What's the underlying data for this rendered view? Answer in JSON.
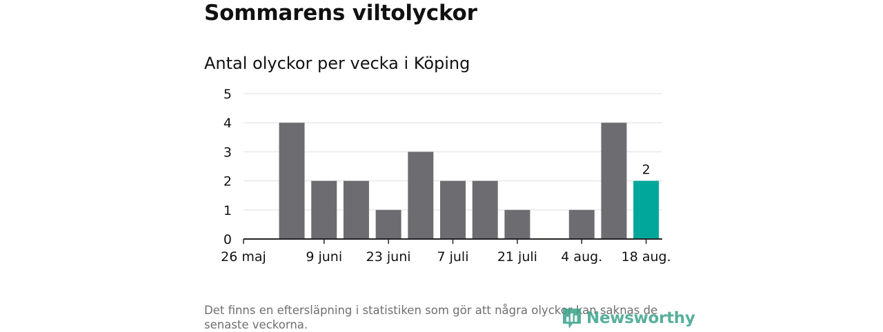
{
  "title": "Sommarens viltolyckor",
  "subtitle": "Antal olyckor per vecka i Köping",
  "footnote": "Det finns en eftersläpning i statistiken som gör att några olyckor kan saknas de senaste veckorna.",
  "brand": {
    "name": "Newsworthy",
    "icon": "newsworthy-logo-icon",
    "color": "#3aa38a"
  },
  "colors": {
    "bar": "#6d6c71",
    "highlight": "#00a79a",
    "grid": "#dddddd",
    "axis": "#222222"
  },
  "chart_data": {
    "type": "bar",
    "title": "Antal olyckor per vecka i Köping",
    "xlabel": "",
    "ylabel": "",
    "ylim": [
      0,
      5
    ],
    "yticks": [
      0,
      1,
      2,
      3,
      4,
      5
    ],
    "grid": true,
    "legend": "none",
    "xtick_labels": [
      "26 maj",
      "9 juni",
      "23 juni",
      "7 juli",
      "21 juli",
      "4 aug.",
      "18 aug."
    ],
    "categories": [
      "26 maj",
      "2 juni",
      "9 juni",
      "16 juni",
      "23 juni",
      "30 juni",
      "7 juli",
      "14 juli",
      "21 juli",
      "28 juli",
      "4 aug.",
      "11 aug.",
      "18 aug."
    ],
    "values": [
      0,
      4,
      2,
      2,
      1,
      3,
      2,
      2,
      1,
      0,
      1,
      4,
      2
    ],
    "highlight_index": 12,
    "data_labels": [
      {
        "index": 12,
        "text": "2"
      }
    ]
  }
}
